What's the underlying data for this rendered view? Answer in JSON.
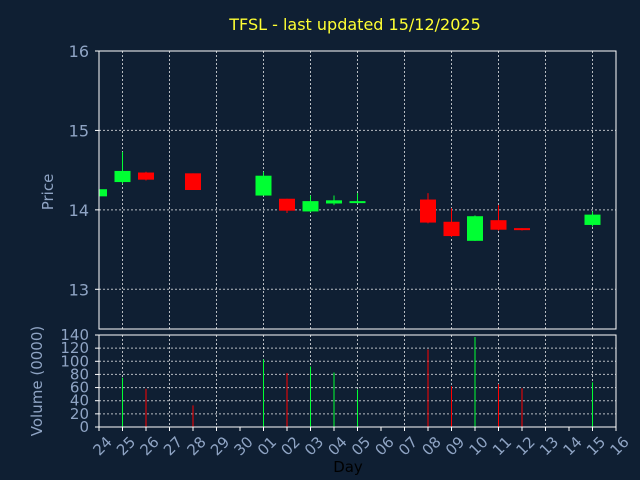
{
  "chart_data": [
    {
      "type": "candlestick",
      "title": "TFSL - last updated 15/12/2025",
      "ylabel": "Price",
      "ylim": [
        12.5,
        16
      ],
      "yticks": [
        "13",
        "14",
        "15",
        "16"
      ],
      "grid": true,
      "x": [
        "24",
        "25",
        "26",
        "27",
        "28",
        "29",
        "30",
        "01",
        "02",
        "03",
        "04",
        "05",
        "06",
        "07",
        "08",
        "09",
        "10",
        "11",
        "12",
        "13",
        "14",
        "15",
        "16"
      ],
      "candles": [
        {
          "x": "24",
          "open": 14.17,
          "high": 14.26,
          "low": 14.17,
          "close": 14.26
        },
        {
          "x": "25",
          "open": 14.35,
          "high": 14.73,
          "low": 14.33,
          "close": 14.49
        },
        {
          "x": "26",
          "open": 14.47,
          "high": 14.48,
          "low": 14.37,
          "close": 14.38
        },
        {
          "x": "28",
          "open": 14.46,
          "high": 14.46,
          "low": 14.25,
          "close": 14.25
        },
        {
          "x": "01",
          "open": 14.18,
          "high": 14.48,
          "low": 14.18,
          "close": 14.43
        },
        {
          "x": "02",
          "open": 14.14,
          "high": 14.14,
          "low": 13.96,
          "close": 13.99
        },
        {
          "x": "03",
          "open": 13.98,
          "high": 14.18,
          "low": 13.97,
          "close": 14.11
        },
        {
          "x": "04",
          "open": 14.08,
          "high": 14.18,
          "low": 14.06,
          "close": 14.12
        },
        {
          "x": "05",
          "open": 14.09,
          "high": 14.21,
          "low": 14.08,
          "close": 14.11
        },
        {
          "x": "08",
          "open": 14.13,
          "high": 14.21,
          "low": 13.83,
          "close": 13.84
        },
        {
          "x": "09",
          "open": 13.85,
          "high": 14.02,
          "low": 13.66,
          "close": 13.67
        },
        {
          "x": "10",
          "open": 13.61,
          "high": 13.93,
          "low": 13.61,
          "close": 13.92
        },
        {
          "x": "11",
          "open": 13.87,
          "high": 14.06,
          "low": 13.74,
          "close": 13.75
        },
        {
          "x": "12",
          "open": 13.77,
          "high": 13.77,
          "low": 13.74,
          "close": 13.76
        },
        {
          "x": "15",
          "open": 13.81,
          "high": 13.98,
          "low": 13.79,
          "close": 13.94
        }
      ],
      "colors": {
        "up": "#00ff33",
        "down": "#ff0000"
      }
    },
    {
      "type": "bar",
      "ylabel": "Volume (0000)",
      "xlabel": "Day",
      "ylim": [
        0,
        140
      ],
      "yticks": [
        "0",
        "20",
        "40",
        "60",
        "80",
        "100",
        "120",
        "140"
      ],
      "grid": true,
      "x": [
        "24",
        "25",
        "26",
        "27",
        "28",
        "29",
        "30",
        "01",
        "02",
        "03",
        "04",
        "05",
        "06",
        "07",
        "08",
        "09",
        "10",
        "11",
        "12",
        "13",
        "14",
        "15",
        "16"
      ],
      "bars": [
        {
          "x": "25",
          "value": 75,
          "direction": "up"
        },
        {
          "x": "26",
          "value": 58,
          "direction": "down"
        },
        {
          "x": "28",
          "value": 33,
          "direction": "down"
        },
        {
          "x": "01",
          "value": 103,
          "direction": "up"
        },
        {
          "x": "02",
          "value": 82,
          "direction": "down"
        },
        {
          "x": "03",
          "value": 92,
          "direction": "up"
        },
        {
          "x": "04",
          "value": 83,
          "direction": "up"
        },
        {
          "x": "05",
          "value": 57,
          "direction": "up"
        },
        {
          "x": "08",
          "value": 118,
          "direction": "down"
        },
        {
          "x": "09",
          "value": 62,
          "direction": "down"
        },
        {
          "x": "10",
          "value": 137,
          "direction": "up"
        },
        {
          "x": "11",
          "value": 65,
          "direction": "down"
        },
        {
          "x": "12",
          "value": 59,
          "direction": "down"
        },
        {
          "x": "15",
          "value": 68,
          "direction": "up"
        }
      ],
      "colors": {
        "up": "#00ff33",
        "down": "#ff0000"
      }
    }
  ]
}
